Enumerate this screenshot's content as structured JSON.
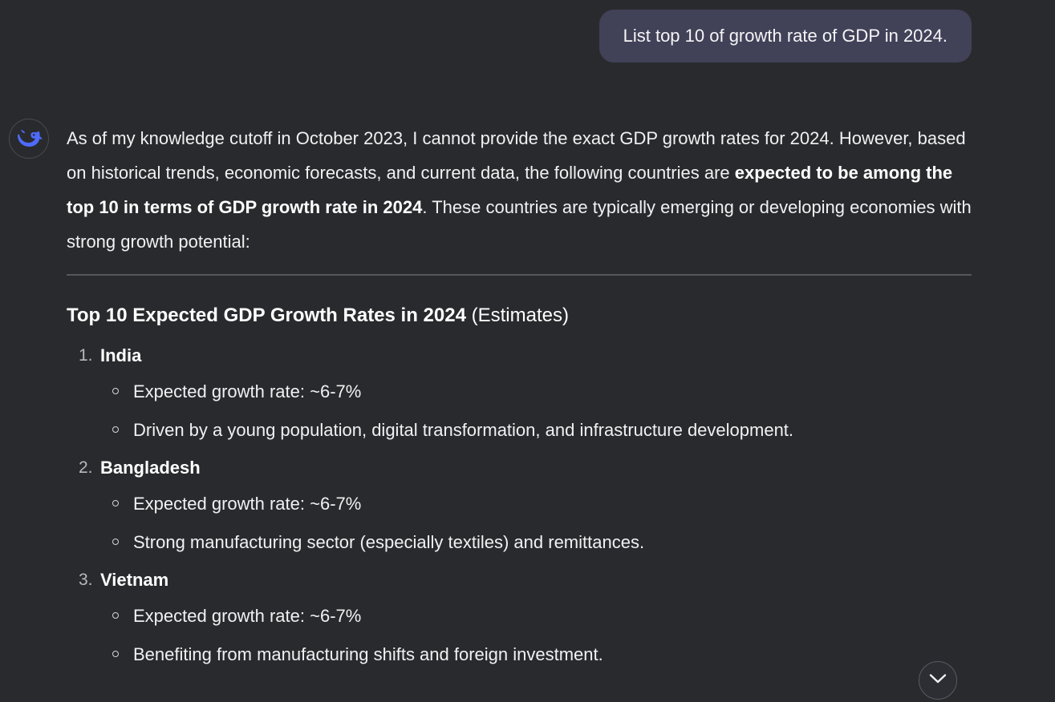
{
  "user_message": {
    "text": "List top 10 of growth rate of GDP in 2024."
  },
  "assistant": {
    "avatar_icon": "deepseek-whale-icon",
    "accent_color": "#4d6bfe",
    "intro_before_bold": "As of my knowledge cutoff in October 2023, I cannot provide the exact GDP growth rates for 2024. However, based on historical trends, economic forecasts, and current data, the following countries are ",
    "intro_bold": "expected to be among the top 10 in terms of GDP growth rate in 2024",
    "intro_after_bold": ". These countries are typically emerging or developing economies with strong growth potential:",
    "heading_bold": "Top 10 Expected GDP Growth Rates in 2024",
    "heading_suffix": " (Estimates)",
    "countries": [
      {
        "number": "1.",
        "name": "India",
        "points": [
          "Expected growth rate: ~6-7%",
          "Driven by a young population, digital transformation, and infrastructure development."
        ]
      },
      {
        "number": "2.",
        "name": "Bangladesh",
        "points": [
          "Expected growth rate: ~6-7%",
          "Strong manufacturing sector (especially textiles) and remittances."
        ]
      },
      {
        "number": "3.",
        "name": "Vietnam",
        "points": [
          "Expected growth rate: ~6-7%",
          "Benefiting from manufacturing shifts and foreign investment."
        ]
      }
    ]
  },
  "scroll_button": {
    "icon": "chevron-down-icon"
  }
}
